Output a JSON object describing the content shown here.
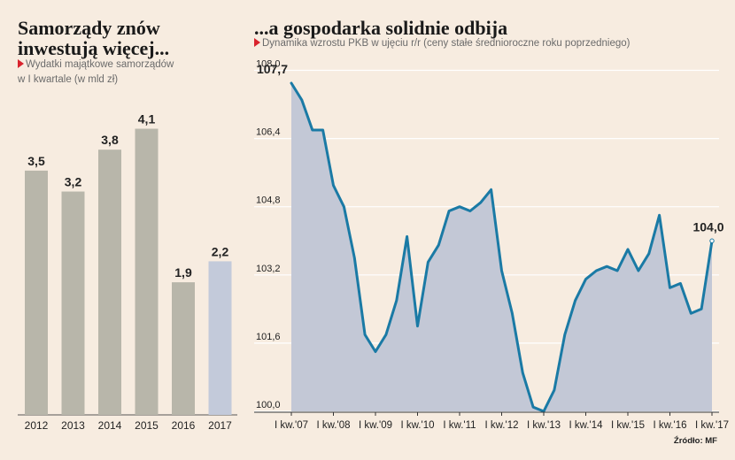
{
  "left": {
    "title_line1": "Samorządy znów",
    "title_line2": "inwestują więcej...",
    "subtitle_line1": "Wydatki majątkowe samorządów",
    "subtitle_line2": "w I kwartale (w mld zł)"
  },
  "right": {
    "title": "...a gospodarka solidnie odbija",
    "subtitle": "Dynamika wzrostu PKB w ujęciu r/r (ceny stałe średnioroczne roku poprzedniego)"
  },
  "source": "Źródło: MF",
  "colors": {
    "background": "#f7ece0",
    "bar": "#b8b6aa",
    "bar_highlight": "#c3cada",
    "line": "#1a7aa5",
    "area": "#c3c8d6",
    "accent_marker": "#d9232d"
  },
  "chart_data": [
    {
      "type": "bar",
      "categories": [
        "2012",
        "2013",
        "2014",
        "2015",
        "2016",
        "2017"
      ],
      "values": [
        3.5,
        3.2,
        3.8,
        4.1,
        1.9,
        2.2
      ],
      "value_labels": [
        "3,5",
        "3,2",
        "3,8",
        "4,1",
        "1,9",
        "2,2"
      ],
      "highlight": "2017",
      "ylim": [
        0,
        4.4
      ]
    },
    {
      "type": "area",
      "x_tick_labels": [
        "I kw.'07",
        "I kw.'08",
        "I kw.'09",
        "I kw.'10",
        "I kw.'11",
        "I kw.'12",
        "I kw.'13",
        "I kw.'14",
        "I kw.'15",
        "I kw.'16",
        "I kw.'17"
      ],
      "x_tick_start_quarter": 0,
      "quarters_per_tick": 4,
      "y_ticks": [
        "100,0",
        "101,6",
        "103,2",
        "104,8",
        "106,4",
        "108,0"
      ],
      "ylim": [
        100.0,
        108.0
      ],
      "values": [
        107.7,
        107.3,
        106.6,
        106.6,
        105.3,
        104.8,
        103.6,
        101.8,
        101.4,
        101.8,
        102.6,
        104.1,
        102.0,
        103.5,
        103.9,
        104.7,
        104.8,
        104.7,
        104.9,
        105.2,
        103.3,
        102.3,
        100.9,
        100.1,
        100.0,
        100.5,
        101.8,
        102.6,
        103.1,
        103.3,
        103.4,
        103.3,
        103.8,
        103.3,
        103.7,
        104.6,
        102.9,
        103.0,
        102.3,
        102.4,
        104.0
      ],
      "annotations": [
        {
          "index": 0,
          "label": "107,7"
        },
        {
          "index": 40,
          "label": "104,0"
        }
      ]
    }
  ]
}
